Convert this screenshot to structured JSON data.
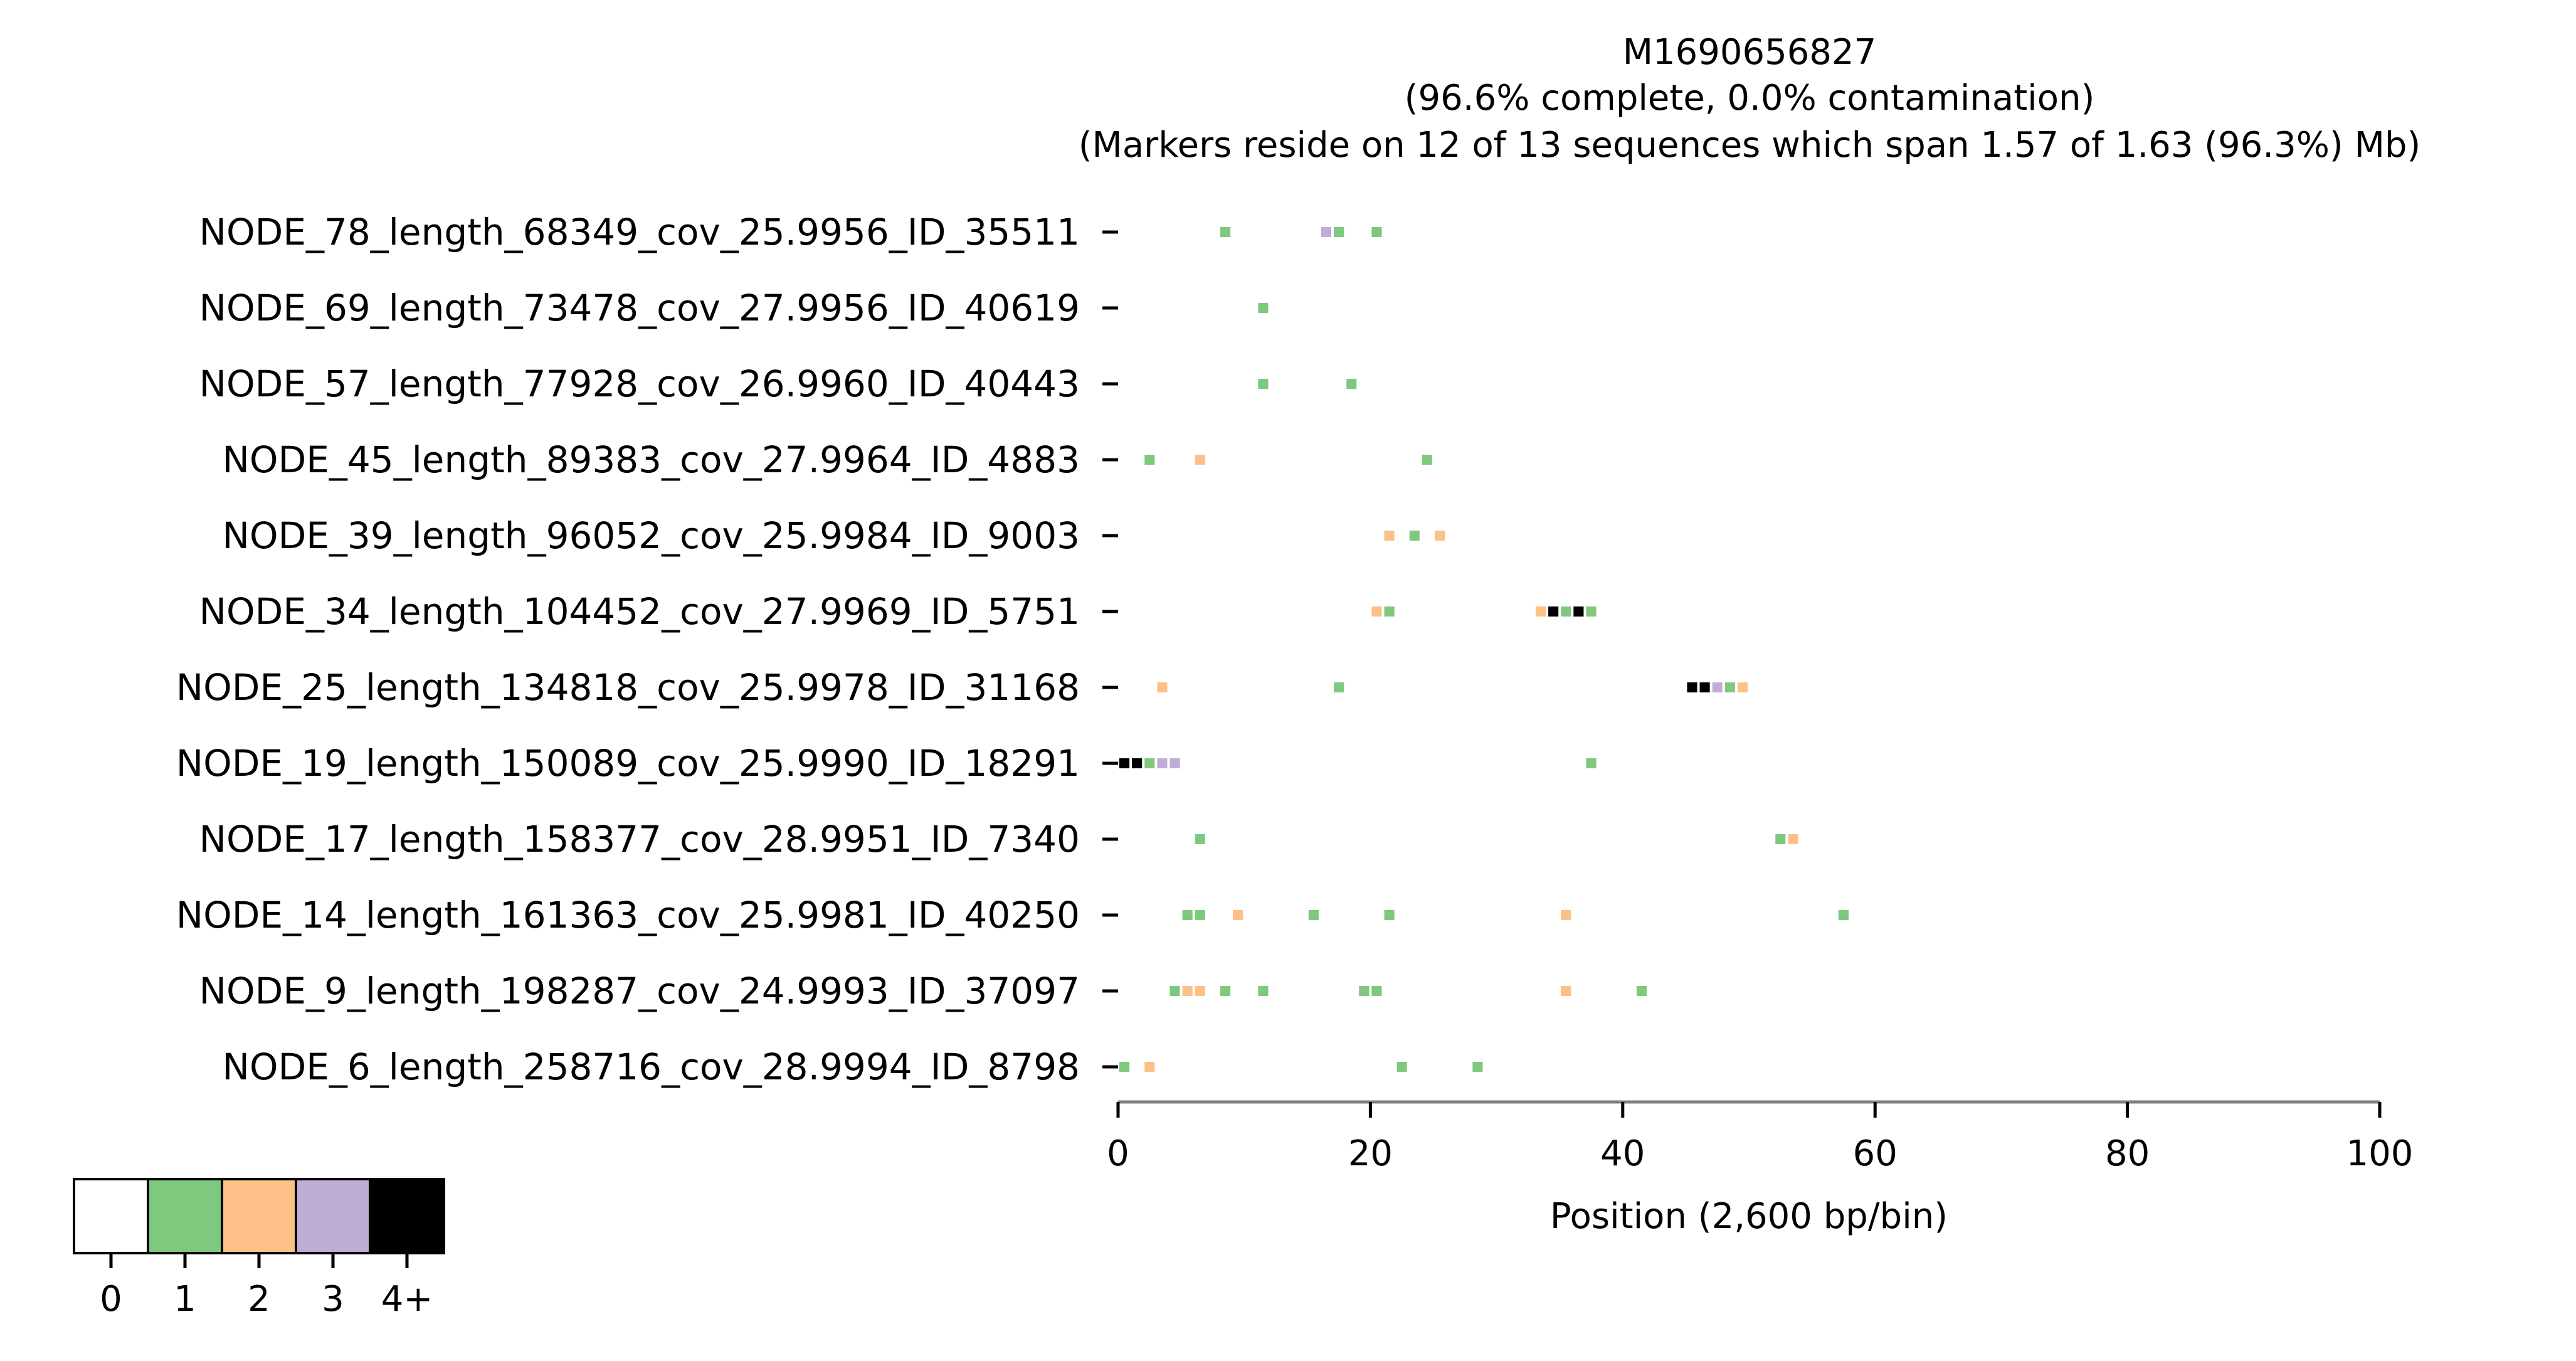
{
  "chart_data": {
    "type": "heatmap",
    "title": "M1690656827",
    "subtitle": "(96.6% complete, 0.0% contamination)",
    "subtitle2": "(Markers reside on 12 of 13 sequences which span 1.57 of 1.63 (96.3%) Mb)",
    "xlabel": "Position (2,600 bp/bin)",
    "xlim": [
      0,
      100
    ],
    "xticks": [
      "0",
      "20",
      "40",
      "60",
      "80",
      "100"
    ],
    "xtick_values": [
      0,
      20,
      40,
      60,
      80,
      100
    ],
    "rows": [
      "NODE_78_length_68349_cov_25.9956_ID_35511",
      "NODE_69_length_73478_cov_27.9956_ID_40619",
      "NODE_57_length_77928_cov_26.9960_ID_40443",
      "NODE_45_length_89383_cov_27.9964_ID_4883",
      "NODE_39_length_96052_cov_25.9984_ID_9003",
      "NODE_34_length_104452_cov_27.9969_ID_5751",
      "NODE_25_length_134818_cov_25.9978_ID_31168",
      "NODE_19_length_150089_cov_25.9990_ID_18291",
      "NODE_17_length_158377_cov_28.9951_ID_7340",
      "NODE_14_length_161363_cov_25.9981_ID_40250",
      "NODE_9_length_198287_cov_24.9993_ID_37097",
      "NODE_6_length_258716_cov_28.9994_ID_8798"
    ],
    "cells": [
      [
        [
          8,
          1
        ],
        [
          16,
          3
        ],
        [
          17,
          1
        ],
        [
          20,
          1
        ]
      ],
      [
        [
          11,
          1
        ]
      ],
      [
        [
          11,
          1
        ],
        [
          18,
          1
        ]
      ],
      [
        [
          2,
          1
        ],
        [
          6,
          2
        ],
        [
          24,
          1
        ]
      ],
      [
        [
          21,
          2
        ],
        [
          23,
          1
        ],
        [
          25,
          2
        ]
      ],
      [
        [
          20,
          2
        ],
        [
          21,
          1
        ],
        [
          33,
          2
        ],
        [
          34,
          4
        ],
        [
          35,
          1
        ],
        [
          36,
          4
        ],
        [
          37,
          1
        ]
      ],
      [
        [
          3,
          2
        ],
        [
          17,
          1
        ],
        [
          45,
          4
        ],
        [
          46,
          4
        ],
        [
          47,
          3
        ],
        [
          48,
          1
        ],
        [
          49,
          2
        ]
      ],
      [
        [
          0,
          4
        ],
        [
          1,
          4
        ],
        [
          2,
          1
        ],
        [
          3,
          3
        ],
        [
          4,
          3
        ],
        [
          37,
          1
        ]
      ],
      [
        [
          6,
          1
        ],
        [
          52,
          1
        ],
        [
          53,
          2
        ]
      ],
      [
        [
          5,
          1
        ],
        [
          6,
          1
        ],
        [
          9,
          2
        ],
        [
          15,
          1
        ],
        [
          21,
          1
        ],
        [
          35,
          2
        ],
        [
          57,
          1
        ]
      ],
      [
        [
          4,
          1
        ],
        [
          5,
          2
        ],
        [
          6,
          2
        ],
        [
          8,
          1
        ],
        [
          11,
          1
        ],
        [
          19,
          1
        ],
        [
          20,
          1
        ],
        [
          35,
          2
        ],
        [
          41,
          1
        ]
      ],
      [
        [
          0,
          1
        ],
        [
          2,
          2
        ],
        [
          22,
          1
        ],
        [
          28,
          1
        ]
      ]
    ],
    "legend": {
      "labels": [
        "0",
        "1",
        "2",
        "3",
        "4+"
      ],
      "colors": [
        "#ffffff",
        "#7fc97f",
        "#fdc086",
        "#beaed4",
        "#000000"
      ]
    }
  }
}
